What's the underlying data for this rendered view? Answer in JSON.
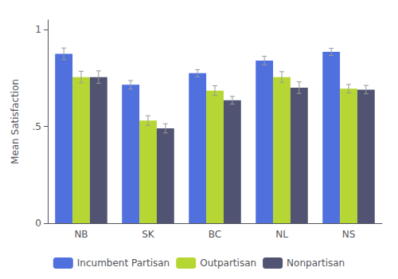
{
  "chart_data": {
    "type": "bar",
    "categories": [
      "NB",
      "SK",
      "BC",
      "NL",
      "NS"
    ],
    "series": [
      {
        "name": "Incumbent Partisan",
        "values": [
          0.875,
          0.715,
          0.775,
          0.84,
          0.885
        ],
        "errors": [
          0.03,
          0.022,
          0.018,
          0.022,
          0.018
        ]
      },
      {
        "name": "Outpartisan",
        "values": [
          0.755,
          0.53,
          0.685,
          0.755,
          0.695
        ],
        "errors": [
          0.03,
          0.025,
          0.025,
          0.028,
          0.022
        ]
      },
      {
        "name": "Nonpartisan",
        "values": [
          0.755,
          0.49,
          0.635,
          0.7,
          0.69
        ],
        "errors": [
          0.032,
          0.024,
          0.02,
          0.03,
          0.022
        ]
      }
    ],
    "ylabel": "Mean Satisfaction",
    "ylim": [
      0,
      1.05
    ],
    "yticks": [
      0,
      {
        "value": 0.5,
        "label": ".5"
      },
      1
    ],
    "grid": false,
    "legend": "bottom"
  }
}
